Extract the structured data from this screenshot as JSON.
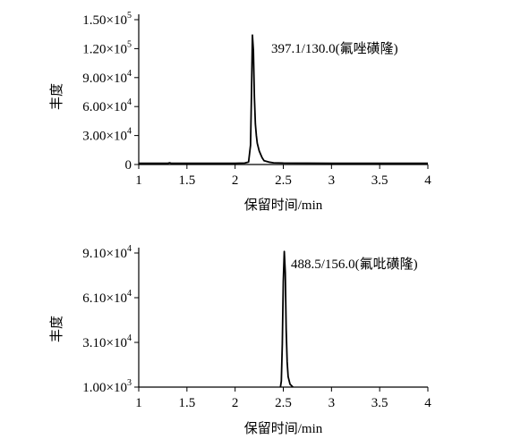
{
  "chart_data": [
    {
      "type": "line",
      "xlabel": "保留时间/min",
      "ylabel": "丰度",
      "xlim": [
        1,
        4
      ],
      "ylim": [
        0,
        150000
      ],
      "xticks": [
        1,
        1.5,
        2,
        2.5,
        3,
        3.5,
        4
      ],
      "xtick_labels": [
        "1",
        "1.5",
        "2",
        "2.5",
        "3",
        "3.5",
        "4"
      ],
      "yticks": [
        {
          "value": 0,
          "mantissa": "0",
          "exponent": ""
        },
        {
          "value": 30000,
          "mantissa": "3.00×10",
          "exponent": "4"
        },
        {
          "value": 60000,
          "mantissa": "6.00×10",
          "exponent": "4"
        },
        {
          "value": 90000,
          "mantissa": "9.00×10",
          "exponent": "4"
        },
        {
          "value": 120000,
          "mantissa": "1.20×10",
          "exponent": "5"
        },
        {
          "value": 150000,
          "mantissa": "1.50×10",
          "exponent": "5"
        }
      ],
      "annotation": "397.1/130.0(氟唑磺隆)",
      "series": [
        {
          "x": [
            1.0,
            1.3,
            1.32,
            1.34,
            2.0,
            2.1,
            2.14,
            2.16,
            2.17,
            2.18,
            2.19,
            2.2,
            2.21,
            2.22,
            2.23,
            2.25,
            2.28,
            2.3,
            2.35,
            2.4,
            2.5,
            3.0,
            3.5,
            4.0
          ],
          "y": [
            1200,
            1200,
            1800,
            1200,
            1300,
            1500,
            2500,
            20000,
            75000,
            134000,
            118000,
            70000,
            42000,
            30000,
            22000,
            14000,
            7000,
            4000,
            2500,
            1800,
            1500,
            1300,
            1300,
            1300
          ]
        }
      ]
    },
    {
      "type": "line",
      "xlabel": "保留时间/min",
      "ylabel": "丰度",
      "xlim": [
        1,
        4
      ],
      "ylim": [
        1000,
        91000
      ],
      "xticks": [
        1,
        1.5,
        2,
        2.5,
        3,
        3.5,
        4
      ],
      "xtick_labels": [
        "1",
        "1.5",
        "2",
        "2.5",
        "3",
        "3.5",
        "4"
      ],
      "yticks": [
        {
          "value": 1000,
          "mantissa": "1.00×10",
          "exponent": "3"
        },
        {
          "value": 31000,
          "mantissa": "3.10×10",
          "exponent": "4"
        },
        {
          "value": 61000,
          "mantissa": "6.10×10",
          "exponent": "4"
        },
        {
          "value": 91000,
          "mantissa": "9.10×10",
          "exponent": "4"
        }
      ],
      "annotation": "488.5/156.0(氟吡磺隆)",
      "series": [
        {
          "x": [
            2.47,
            2.48,
            2.49,
            2.5,
            2.51,
            2.52,
            2.53,
            2.54,
            2.55,
            2.57,
            2.6
          ],
          "y": [
            1000,
            5000,
            30000,
            72000,
            92000,
            78000,
            40000,
            18000,
            8000,
            3000,
            1000
          ]
        }
      ]
    }
  ]
}
